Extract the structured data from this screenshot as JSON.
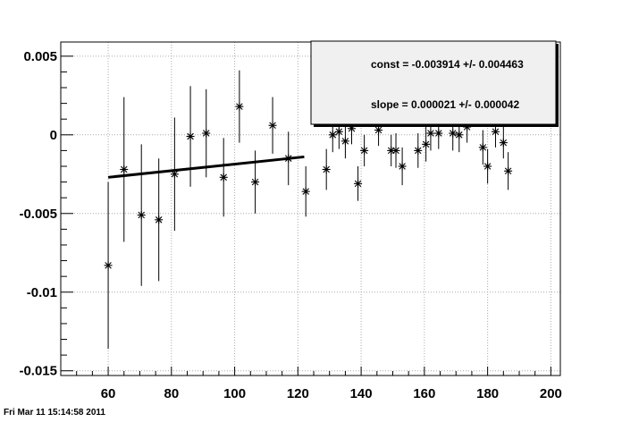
{
  "timestamp": "Fri Mar 11 15:14:58 2011",
  "stats": {
    "const_text": "const = -0.003914 +/- 0.004463",
    "slope_text": "slope = 0.000021 +/- 0.000042"
  },
  "chart_data": {
    "type": "scatter",
    "title": "",
    "xlabel": "",
    "ylabel": "",
    "xlim": [
      45,
      203
    ],
    "ylim": [
      -0.0153,
      0.0059
    ],
    "grid": true,
    "marker": "asterisk",
    "line_color": "#000000",
    "xticks": [
      {
        "value": 60,
        "label": "60"
      },
      {
        "value": 80,
        "label": "80"
      },
      {
        "value": 100,
        "label": "100"
      },
      {
        "value": 120,
        "label": "120"
      },
      {
        "value": 140,
        "label": "140"
      },
      {
        "value": 160,
        "label": "160"
      },
      {
        "value": 180,
        "label": "180"
      },
      {
        "value": 200,
        "label": "200"
      }
    ],
    "yticks": [
      {
        "value": 0.005,
        "label": "0.005"
      },
      {
        "value": 0,
        "label": "0"
      },
      {
        "value": -0.005,
        "label": "-0.005"
      },
      {
        "value": -0.01,
        "label": "-0.01"
      },
      {
        "value": -0.015,
        "label": "-0.015"
      }
    ],
    "points": [
      {
        "x": 60.0,
        "y": -0.0083,
        "yerr": 0.0053
      },
      {
        "x": 65.0,
        "y": -0.0022,
        "yerr": 0.0046
      },
      {
        "x": 70.5,
        "y": -0.0051,
        "yerr": 0.0045
      },
      {
        "x": 76.0,
        "y": -0.0054,
        "yerr": 0.0039
      },
      {
        "x": 81.0,
        "y": -0.0025,
        "yerr": 0.0036
      },
      {
        "x": 86.0,
        "y": -0.0001,
        "yerr": 0.0032
      },
      {
        "x": 91.0,
        "y": 0.0001,
        "yerr": 0.0028
      },
      {
        "x": 96.5,
        "y": -0.0027,
        "yerr": 0.0025
      },
      {
        "x": 101.5,
        "y": 0.0018,
        "yerr": 0.0023
      },
      {
        "x": 106.5,
        "y": -0.003,
        "yerr": 0.002
      },
      {
        "x": 112.0,
        "y": 0.0006,
        "yerr": 0.0018
      },
      {
        "x": 117.0,
        "y": -0.0015,
        "yerr": 0.0017
      },
      {
        "x": 122.5,
        "y": -0.0036,
        "yerr": 0.0016
      },
      {
        "x": 129.0,
        "y": -0.0022,
        "yerr": 0.0013
      },
      {
        "x": 131.0,
        "y": 0.0,
        "yerr": 0.0011
      },
      {
        "x": 133.0,
        "y": 0.0002,
        "yerr": 0.0011
      },
      {
        "x": 135.0,
        "y": -0.0004,
        "yerr": 0.0011
      },
      {
        "x": 137.0,
        "y": 0.0004,
        "yerr": 0.001
      },
      {
        "x": 139.0,
        "y": -0.0031,
        "yerr": 0.0011
      },
      {
        "x": 141.0,
        "y": -0.001,
        "yerr": 0.001
      },
      {
        "x": 145.5,
        "y": 0.0003,
        "yerr": 0.001
      },
      {
        "x": 149.5,
        "y": -0.001,
        "yerr": 0.001
      },
      {
        "x": 151.0,
        "y": -0.001,
        "yerr": 0.0011
      },
      {
        "x": 153.0,
        "y": -0.002,
        "yerr": 0.0012
      },
      {
        "x": 158.0,
        "y": -0.001,
        "yerr": 0.0011
      },
      {
        "x": 160.5,
        "y": -0.0006,
        "yerr": 0.0011
      },
      {
        "x": 162.0,
        "y": 0.0001,
        "yerr": 0.0011
      },
      {
        "x": 164.5,
        "y": 0.0001,
        "yerr": 0.001
      },
      {
        "x": 169.0,
        "y": 0.0001,
        "yerr": 0.0011
      },
      {
        "x": 171.0,
        "y": 0.0,
        "yerr": 0.0011
      },
      {
        "x": 173.5,
        "y": 0.0005,
        "yerr": 0.001
      },
      {
        "x": 178.5,
        "y": -0.0008,
        "yerr": 0.0011
      },
      {
        "x": 180.0,
        "y": -0.002,
        "yerr": 0.0011
      },
      {
        "x": 182.5,
        "y": 0.0002,
        "yerr": 0.001
      },
      {
        "x": 185.0,
        "y": -0.0005,
        "yerr": 0.001
      },
      {
        "x": 186.5,
        "y": -0.0023,
        "yerr": 0.0012
      }
    ],
    "fit": {
      "x": [
        60,
        122
      ],
      "y": [
        -0.0027,
        -0.0014
      ]
    }
  }
}
